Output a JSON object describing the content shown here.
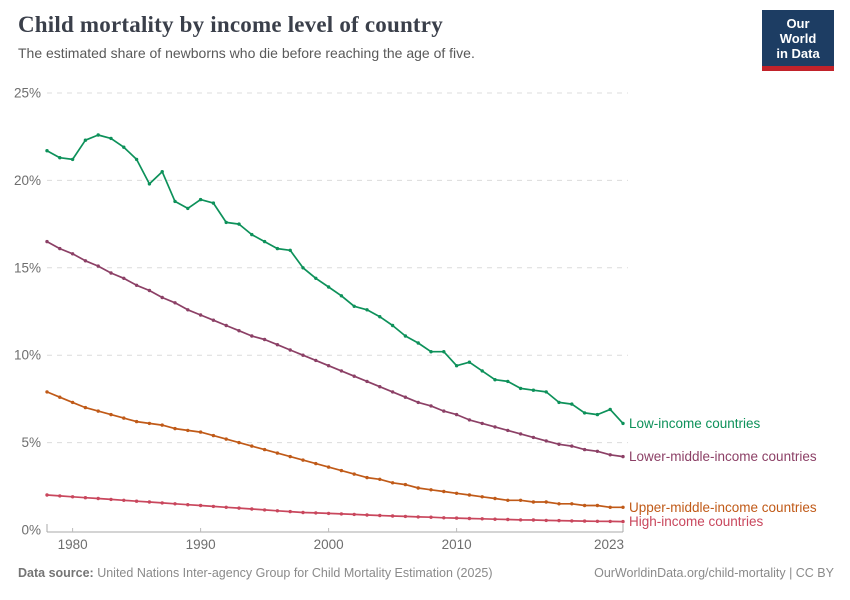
{
  "header": {
    "title": "Child mortality by income level of country",
    "subtitle": "The estimated share of newborns who die before reaching the age of five.",
    "logo": {
      "line1": "Our World",
      "line2": "in Data",
      "bg": "#1d3d63",
      "stripe": "#c1222a"
    }
  },
  "footer": {
    "source_label": "Data source:",
    "source_text": " United Nations Inter-agency Group for Child Mortality Estimation (2025)",
    "citation": "OurWorldinData.org/child-mortality | CC BY"
  },
  "chart_data": {
    "type": "line",
    "title": "Child mortality by income level of country",
    "xlabel": "",
    "ylabel": "",
    "grid": "dashed",
    "legend_position": "right-of-line-end",
    "ylim": [
      0,
      25
    ],
    "y_ticks": [
      0,
      5,
      10,
      15,
      20,
      25
    ],
    "y_suffix": "%",
    "x_ticks": [
      1980,
      1990,
      2000,
      2010,
      2023
    ],
    "x": [
      1978,
      1979,
      1980,
      1981,
      1982,
      1983,
      1984,
      1985,
      1986,
      1987,
      1988,
      1989,
      1990,
      1991,
      1992,
      1993,
      1994,
      1995,
      1996,
      1997,
      1998,
      1999,
      2000,
      2001,
      2002,
      2003,
      2004,
      2005,
      2006,
      2007,
      2008,
      2009,
      2010,
      2011,
      2012,
      2013,
      2014,
      2015,
      2016,
      2017,
      2018,
      2019,
      2020,
      2021,
      2022,
      2023
    ],
    "series": [
      {
        "name": "Low-income countries",
        "color": "#0d915a",
        "values": [
          21.7,
          21.3,
          21.2,
          22.3,
          22.6,
          22.4,
          21.9,
          21.2,
          19.8,
          20.5,
          18.8,
          18.4,
          18.9,
          18.7,
          17.6,
          17.5,
          16.9,
          16.5,
          16.1,
          16.0,
          15.0,
          14.4,
          13.9,
          13.4,
          12.8,
          12.6,
          12.2,
          11.7,
          11.1,
          10.7,
          10.2,
          10.2,
          9.4,
          9.6,
          9.1,
          8.6,
          8.5,
          8.1,
          8.0,
          7.9,
          7.3,
          7.2,
          6.7,
          6.6,
          6.9,
          6.1
        ]
      },
      {
        "name": "Lower-middle-income countries",
        "color": "#8c4066",
        "values": [
          16.5,
          16.1,
          15.8,
          15.4,
          15.1,
          14.7,
          14.4,
          14.0,
          13.7,
          13.3,
          13.0,
          12.6,
          12.3,
          12.0,
          11.7,
          11.4,
          11.1,
          10.9,
          10.6,
          10.3,
          10.0,
          9.7,
          9.4,
          9.1,
          8.8,
          8.5,
          8.2,
          7.9,
          7.6,
          7.3,
          7.1,
          6.8,
          6.6,
          6.3,
          6.1,
          5.9,
          5.7,
          5.5,
          5.3,
          5.1,
          4.9,
          4.8,
          4.6,
          4.5,
          4.3,
          4.2
        ]
      },
      {
        "name": "Upper-middle-income countries",
        "color": "#c05a18",
        "values": [
          7.9,
          7.6,
          7.3,
          7.0,
          6.8,
          6.6,
          6.4,
          6.2,
          6.1,
          6.0,
          5.8,
          5.7,
          5.6,
          5.4,
          5.2,
          5.0,
          4.8,
          4.6,
          4.4,
          4.2,
          4.0,
          3.8,
          3.6,
          3.4,
          3.2,
          3.0,
          2.9,
          2.7,
          2.6,
          2.4,
          2.3,
          2.2,
          2.1,
          2.0,
          1.9,
          1.8,
          1.7,
          1.7,
          1.6,
          1.6,
          1.5,
          1.5,
          1.4,
          1.4,
          1.3,
          1.3
        ]
      },
      {
        "name": "High-income countries",
        "color": "#c9475d",
        "values": [
          2.0,
          1.95,
          1.9,
          1.85,
          1.8,
          1.75,
          1.7,
          1.65,
          1.6,
          1.55,
          1.5,
          1.45,
          1.4,
          1.35,
          1.3,
          1.25,
          1.2,
          1.15,
          1.1,
          1.05,
          1.0,
          0.98,
          0.95,
          0.92,
          0.89,
          0.86,
          0.83,
          0.8,
          0.78,
          0.75,
          0.73,
          0.7,
          0.68,
          0.66,
          0.64,
          0.62,
          0.6,
          0.58,
          0.57,
          0.55,
          0.54,
          0.52,
          0.51,
          0.5,
          0.49,
          0.48
        ]
      }
    ]
  }
}
